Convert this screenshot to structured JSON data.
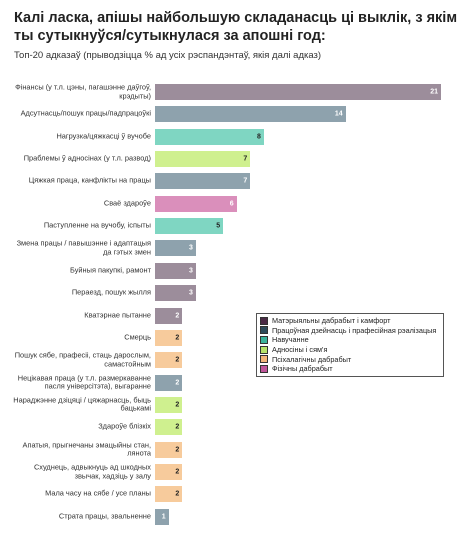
{
  "chart_data": {
    "type": "bar",
    "orientation": "horizontal",
    "title": "Калі ласка, апішы найбольшую складанасць ці выклік, з якім ты сутыкнуўся/сутыкнулася за апошні год:",
    "subtitle": "Топ-20 адказаў (прыводзіцца % ад усіх рэспандэнтаў, якія далі адказ)",
    "categories": [
      "Фінансы (у т.л. цэны, пагашэнне даўгоў, крэдыты)",
      "Адсутнасць/пошук працы/падпрацоўкі",
      "Нагрузка/цяжкасці ў вучобе",
      "Праблемы ў адносінах (у т.л. развод)",
      "Цяжкая праца, канфлікты на працы",
      "Сваё здароўе",
      "Паступленне на вучобу, іспыты",
      "Змена працы / павышэнне і адаптацыя да гэтых змен",
      "Буйныя пакупкі, рамонт",
      "Пераезд, пошук жылля",
      "Кватэрнае пытанне",
      "Смерць",
      "Пошук сябе, прафесіі, стаць дарослым, самастойным",
      "Нецікавая праца (у т.л. размеркаванне пасля універсітэта), выгаранне",
      "Нараджэнне дзіцяці / цяжарнасць, быць бацькамі",
      "Здароўе блізкіх",
      "Апатыя, прыгнечаны эмацыйны стан, лянота",
      "Схуднець, адвыкнуць ад шкодных звычак, хадзіць у залу",
      "Мала часу на сябе / усе планы",
      "Страта працы, звальненне"
    ],
    "series": [
      {
        "name": "Матэрыяльны дабрабыт і камфорт",
        "color": "#9c8d9b",
        "legend_color": "#4b2a45",
        "values": [
          21,
          null,
          null,
          null,
          null,
          null,
          null,
          null,
          3,
          3,
          2,
          null,
          null,
          null,
          null,
          null,
          null,
          null,
          null,
          null
        ]
      },
      {
        "name": "Працоўная дзейнасць і прафесійная рэалізацыя",
        "color": "#8ea2ad",
        "legend_color": "#2e4b5a",
        "values": [
          null,
          14,
          null,
          null,
          7,
          null,
          null,
          3,
          null,
          null,
          null,
          null,
          null,
          2,
          null,
          null,
          null,
          null,
          null,
          1
        ]
      },
      {
        "name": "Навучанне",
        "color": "#7fd6c2",
        "legend_color": "#3bb39b",
        "values": [
          null,
          null,
          8,
          null,
          null,
          null,
          5,
          null,
          null,
          null,
          null,
          null,
          null,
          null,
          null,
          null,
          null,
          null,
          null,
          null
        ]
      },
      {
        "name": "Адносіны і сям'я",
        "color": "#cff08f",
        "legend_color": "#b6e36a",
        "values": [
          null,
          null,
          null,
          7,
          null,
          null,
          null,
          null,
          null,
          null,
          null,
          null,
          null,
          null,
          2,
          2,
          null,
          null,
          null,
          null
        ]
      },
      {
        "name": "Псіхалагічны дабрабыт",
        "color": "#f7cb9c",
        "legend_color": "#f2b57a",
        "values": [
          null,
          null,
          null,
          null,
          null,
          null,
          null,
          null,
          null,
          null,
          null,
          2,
          2,
          null,
          null,
          null,
          2,
          2,
          2,
          null
        ]
      },
      {
        "name": "Фізічны дабрабыт",
        "color": "#da8fbb",
        "legend_color": "#c0569a",
        "values": [
          null,
          null,
          null,
          null,
          null,
          6,
          null,
          null,
          null,
          null,
          null,
          null,
          null,
          null,
          null,
          null,
          null,
          null,
          null,
          null
        ]
      }
    ],
    "xlim": [
      0,
      21
    ],
    "grid": false
  }
}
